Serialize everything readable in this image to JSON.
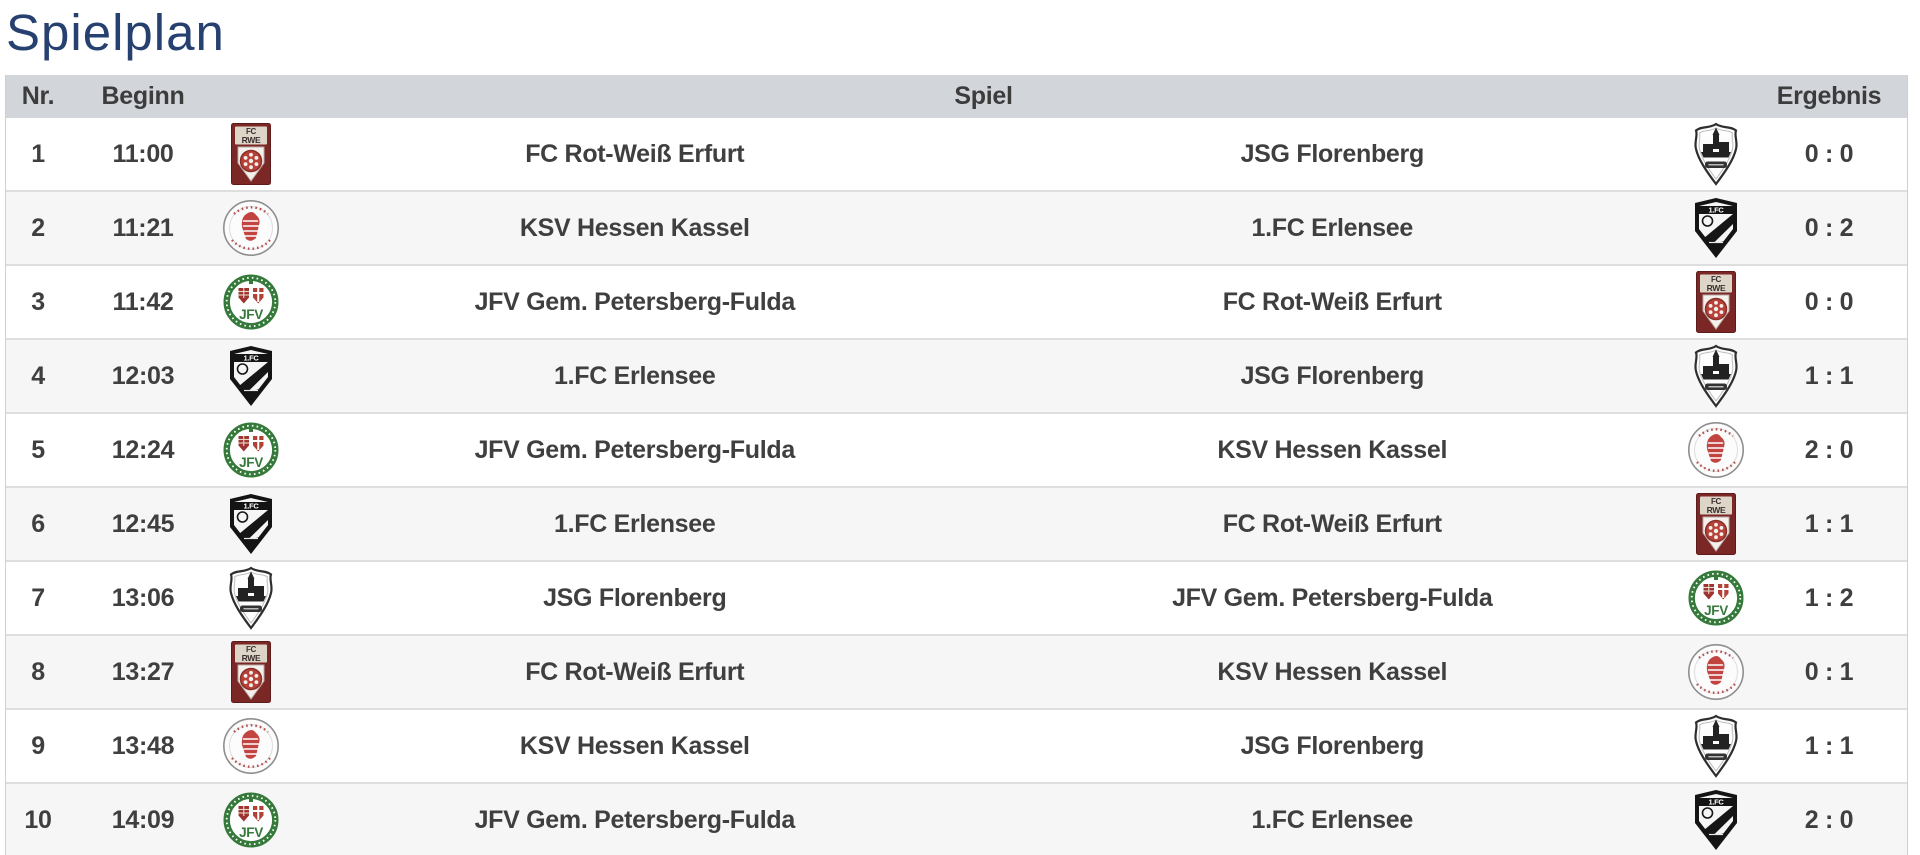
{
  "page": {
    "title": "Spielplan",
    "title_color": "#26406f",
    "header_bg": "#d2d5da",
    "row_alt_bg": "#f6f6f7",
    "text_color": "#3f3f3f"
  },
  "table": {
    "headers": {
      "nr": "Nr.",
      "beginn": "Beginn",
      "spiel": "Spiel",
      "ergebnis": "Ergebnis"
    },
    "teams": {
      "erfurt": {
        "name": "FC Rot-Weiß Erfurt"
      },
      "kassel": {
        "name": "KSV Hessen Kassel"
      },
      "petersberg": {
        "name": "JFV Gem. Petersberg-Fulda"
      },
      "erlensee": {
        "name": "1.FC Erlensee"
      },
      "florenberg": {
        "name": "JSG Florenberg"
      }
    },
    "rows": [
      {
        "nr": "1",
        "beginn": "11:00",
        "home": "erfurt",
        "away": "florenberg",
        "ergebnis": "0 : 0"
      },
      {
        "nr": "2",
        "beginn": "11:21",
        "home": "kassel",
        "away": "erlensee",
        "ergebnis": "0 : 2"
      },
      {
        "nr": "3",
        "beginn": "11:42",
        "home": "petersberg",
        "away": "erfurt",
        "ergebnis": "0 : 0"
      },
      {
        "nr": "4",
        "beginn": "12:03",
        "home": "erlensee",
        "away": "florenberg",
        "ergebnis": "1 : 1"
      },
      {
        "nr": "5",
        "beginn": "12:24",
        "home": "petersberg",
        "away": "kassel",
        "ergebnis": "2 : 0"
      },
      {
        "nr": "6",
        "beginn": "12:45",
        "home": "erlensee",
        "away": "erfurt",
        "ergebnis": "1 : 1"
      },
      {
        "nr": "7",
        "beginn": "13:06",
        "home": "florenberg",
        "away": "petersberg",
        "ergebnis": "1 : 2"
      },
      {
        "nr": "8",
        "beginn": "13:27",
        "home": "erfurt",
        "away": "kassel",
        "ergebnis": "0 : 1"
      },
      {
        "nr": "9",
        "beginn": "13:48",
        "home": "kassel",
        "away": "florenberg",
        "ergebnis": "1 : 1"
      },
      {
        "nr": "10",
        "beginn": "14:09",
        "home": "petersberg",
        "away": "erlensee",
        "ergebnis": "2 : 0"
      }
    ]
  }
}
